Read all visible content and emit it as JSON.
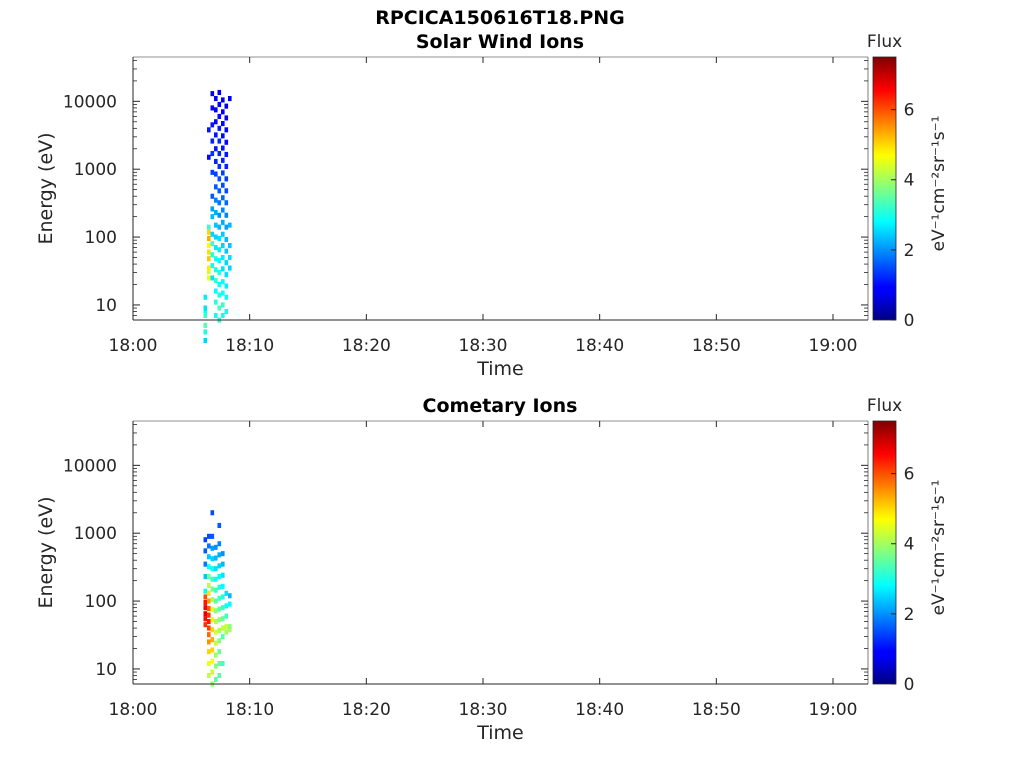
{
  "figure": {
    "title": "RPCICA150616T18.PNG"
  },
  "chart_data": [
    {
      "type": "heatmap",
      "title": "Solar Wind Ions",
      "xlabel": "Time",
      "ylabel": "Energy (eV)",
      "x_ticks": [
        "18:00",
        "18:10",
        "18:20",
        "18:30",
        "18:40",
        "18:50",
        "19:00"
      ],
      "x_range": [
        "18:00",
        "19:03"
      ],
      "y_scale": "log",
      "y_ticks": [
        "10",
        "100",
        "1000",
        "10000"
      ],
      "y_range": [
        6,
        45000
      ],
      "colorbar": {
        "label": "Flux",
        "units": "eV⁻¹cm⁻²sr⁻¹s⁻¹",
        "range": [
          0,
          7.5
        ],
        "ticks": [
          "0",
          "2",
          "4",
          "6"
        ],
        "colormap": "jet"
      },
      "columns": [
        {
          "time": "18:06.2",
          "rows": [
            [
              13,
              2.7
            ],
            [
              8,
              2.9
            ],
            [
              7,
              3.2
            ],
            [
              9,
              2.6
            ],
            [
              5,
              3.4
            ],
            [
              4,
              3.0
            ],
            [
              3,
              2.5
            ]
          ]
        },
        {
          "time": "18:06.5",
          "rows": [
            [
              31,
              4.3
            ],
            [
              25,
              4.6
            ],
            [
              35,
              4.8
            ],
            [
              48,
              5.1
            ],
            [
              60,
              4.9
            ],
            [
              75,
              4.7
            ],
            [
              95,
              5.3
            ],
            [
              118,
              5.0
            ],
            [
              140,
              3.2
            ],
            [
              1500,
              1.0
            ],
            [
              3800,
              1.1
            ]
          ]
        },
        {
          "time": "18:06.8",
          "rows": [
            [
              25,
              2.6
            ],
            [
              38,
              2.9
            ],
            [
              55,
              3.1
            ],
            [
              80,
              3.3
            ],
            [
              110,
              2.5
            ],
            [
              200,
              2.3
            ],
            [
              260,
              2.1
            ],
            [
              400,
              1.6
            ],
            [
              900,
              1.4
            ],
            [
              1700,
              1.3
            ],
            [
              2600,
              1.2
            ],
            [
              4500,
              1.1
            ],
            [
              8000,
              1.0
            ],
            [
              13000,
              0.9
            ]
          ]
        },
        {
          "time": "18:07.1",
          "rows": [
            [
              7,
              2.9
            ],
            [
              11,
              3.1
            ],
            [
              16,
              2.8
            ],
            [
              23,
              3.2
            ],
            [
              33,
              3.0
            ],
            [
              48,
              2.9
            ],
            [
              70,
              2.7
            ],
            [
              100,
              2.5
            ],
            [
              150,
              2.4
            ],
            [
              230,
              2.2
            ],
            [
              350,
              1.9
            ],
            [
              550,
              1.6
            ],
            [
              850,
              1.4
            ],
            [
              1300,
              1.2
            ],
            [
              2000,
              1.1
            ],
            [
              3200,
              1.1
            ],
            [
              5000,
              1.0
            ],
            [
              7500,
              0.9
            ],
            [
              11000,
              0.8
            ]
          ]
        },
        {
          "time": "18:07.4",
          "rows": [
            [
              6,
              3.1
            ],
            [
              9,
              3.3
            ],
            [
              14,
              3.0
            ],
            [
              20,
              2.9
            ],
            [
              30,
              3.1
            ],
            [
              45,
              2.8
            ],
            [
              65,
              2.7
            ],
            [
              95,
              2.6
            ],
            [
              140,
              2.3
            ],
            [
              210,
              2.0
            ],
            [
              320,
              1.8
            ],
            [
              480,
              1.6
            ],
            [
              720,
              1.5
            ],
            [
              1100,
              1.3
            ],
            [
              1700,
              1.2
            ],
            [
              2600,
              1.2
            ],
            [
              4000,
              1.1
            ],
            [
              6000,
              1.0
            ],
            [
              9000,
              0.9
            ],
            [
              13500,
              0.8
            ]
          ]
        },
        {
          "time": "18:07.7",
          "rows": [
            [
              7,
              3.0
            ],
            [
              10,
              3.2
            ],
            [
              15,
              2.9
            ],
            [
              22,
              2.8
            ],
            [
              34,
              2.6
            ],
            [
              50,
              2.7
            ],
            [
              75,
              2.5
            ],
            [
              110,
              2.4
            ],
            [
              165,
              2.2
            ],
            [
              250,
              1.9
            ],
            [
              380,
              1.7
            ],
            [
              580,
              1.5
            ],
            [
              880,
              1.4
            ],
            [
              1350,
              1.2
            ],
            [
              2050,
              1.1
            ],
            [
              3100,
              1.0
            ],
            [
              4700,
              1.0
            ],
            [
              7000,
              0.9
            ],
            [
              10500,
              0.8
            ]
          ]
        },
        {
          "time": "18:08.0",
          "rows": [
            [
              8,
              2.9
            ],
            [
              13,
              2.8
            ],
            [
              19,
              2.7
            ],
            [
              28,
              2.6
            ],
            [
              42,
              2.5
            ],
            [
              62,
              2.4
            ],
            [
              92,
              2.3
            ],
            [
              140,
              2.1
            ],
            [
              210,
              1.9
            ],
            [
              320,
              1.7
            ],
            [
              480,
              1.5
            ],
            [
              720,
              1.4
            ],
            [
              1100,
              1.2
            ],
            [
              1650,
              1.1
            ],
            [
              2500,
              1.0
            ],
            [
              3800,
              1.0
            ],
            [
              5700,
              0.9
            ],
            [
              8500,
              0.8
            ]
          ]
        },
        {
          "time": "18:08.3",
          "rows": [
            [
              35,
              2.5
            ],
            [
              50,
              2.6
            ],
            [
              75,
              2.4
            ],
            [
              150,
              2.3
            ],
            [
              11000,
              0.9
            ]
          ]
        }
      ]
    },
    {
      "type": "heatmap",
      "title": "Cometary Ions",
      "xlabel": "Time",
      "ylabel": "Energy (eV)",
      "x_ticks": [
        "18:00",
        "18:10",
        "18:20",
        "18:30",
        "18:40",
        "18:50",
        "19:00"
      ],
      "x_range": [
        "18:00",
        "19:03"
      ],
      "y_scale": "log",
      "y_ticks": [
        "10",
        "100",
        "1000",
        "10000"
      ],
      "y_range": [
        6,
        45000
      ],
      "colorbar": {
        "label": "Flux",
        "units": "eV⁻¹cm⁻²sr⁻¹s⁻¹",
        "range": [
          0,
          7.5
        ],
        "ticks": [
          "0",
          "2",
          "4",
          "6"
        ],
        "colormap": "jet"
      },
      "columns": [
        {
          "time": "18:06.2",
          "rows": [
            [
              45,
              6.2
            ],
            [
              55,
              6.5
            ],
            [
              65,
              6.8
            ],
            [
              80,
              6.6
            ],
            [
              95,
              6.4
            ],
            [
              115,
              6.0
            ],
            [
              140,
              2.8
            ],
            [
              230,
              2.4
            ],
            [
              350,
              1.8
            ],
            [
              550,
              1.6
            ],
            [
              800,
              1.4
            ]
          ]
        },
        {
          "time": "18:06.5",
          "rows": [
            [
              8,
              4.2
            ],
            [
              12,
              4.6
            ],
            [
              18,
              5.0
            ],
            [
              25,
              5.5
            ],
            [
              32,
              5.8
            ],
            [
              40,
              6.1
            ],
            [
              50,
              6.4
            ],
            [
              62,
              6.2
            ],
            [
              78,
              5.9
            ],
            [
              100,
              5.4
            ],
            [
              130,
              4.9
            ],
            [
              170,
              4.2
            ],
            [
              230,
              3.6
            ],
            [
              320,
              2.9
            ],
            [
              450,
              2.4
            ],
            [
              650,
              1.8
            ],
            [
              900,
              1.5
            ]
          ]
        },
        {
          "time": "18:06.8",
          "rows": [
            [
              6,
              3.9
            ],
            [
              9,
              4.3
            ],
            [
              13,
              4.7
            ],
            [
              19,
              5.0
            ],
            [
              27,
              5.3
            ],
            [
              38,
              5.0
            ],
            [
              53,
              4.8
            ],
            [
              75,
              4.5
            ],
            [
              105,
              4.1
            ],
            [
              150,
              3.7
            ],
            [
              210,
              3.3
            ],
            [
              300,
              2.9
            ],
            [
              420,
              2.5
            ],
            [
              600,
              2.1
            ],
            [
              900,
              1.6
            ],
            [
              2000,
              1.5
            ]
          ]
        },
        {
          "time": "18:07.1",
          "rows": [
            [
              7,
              3.5
            ],
            [
              11,
              3.8
            ],
            [
              16,
              4.0
            ],
            [
              24,
              4.2
            ],
            [
              35,
              4.4
            ],
            [
              50,
              4.1
            ],
            [
              72,
              3.8
            ],
            [
              100,
              3.5
            ],
            [
              145,
              3.2
            ],
            [
              210,
              2.9
            ],
            [
              300,
              2.6
            ],
            [
              430,
              2.3
            ],
            [
              620,
              2.0
            ]
          ]
        },
        {
          "time": "18:07.4",
          "rows": [
            [
              8,
              3.4
            ],
            [
              12,
              3.5
            ],
            [
              18,
              3.6
            ],
            [
              26,
              3.8
            ],
            [
              37,
              4.0
            ],
            [
              53,
              3.8
            ],
            [
              76,
              3.5
            ],
            [
              110,
              3.3
            ],
            [
              160,
              3.0
            ],
            [
              230,
              2.8
            ],
            [
              330,
              2.5
            ],
            [
              480,
              2.2
            ],
            [
              700,
              1.9
            ],
            [
              1300,
              1.6
            ]
          ]
        },
        {
          "time": "18:07.7",
          "rows": [
            [
              12,
              3.3
            ],
            [
              30,
              3.5
            ],
            [
              40,
              4.2
            ],
            [
              55,
              3.6
            ],
            [
              80,
              3.2
            ],
            [
              115,
              3.0
            ],
            [
              165,
              2.8
            ],
            [
              240,
              2.6
            ],
            [
              350,
              2.3
            ],
            [
              500,
              2.0
            ]
          ]
        },
        {
          "time": "18:08.0",
          "rows": [
            [
              35,
              4.0
            ],
            [
              42,
              4.3
            ],
            [
              60,
              3.3
            ],
            [
              85,
              2.9
            ],
            [
              130,
              2.6
            ]
          ]
        },
        {
          "time": "18:08.3",
          "rows": [
            [
              38,
              4.1
            ],
            [
              42,
              3.8
            ],
            [
              90,
              2.8
            ],
            [
              120,
              2.3
            ]
          ]
        }
      ]
    }
  ]
}
